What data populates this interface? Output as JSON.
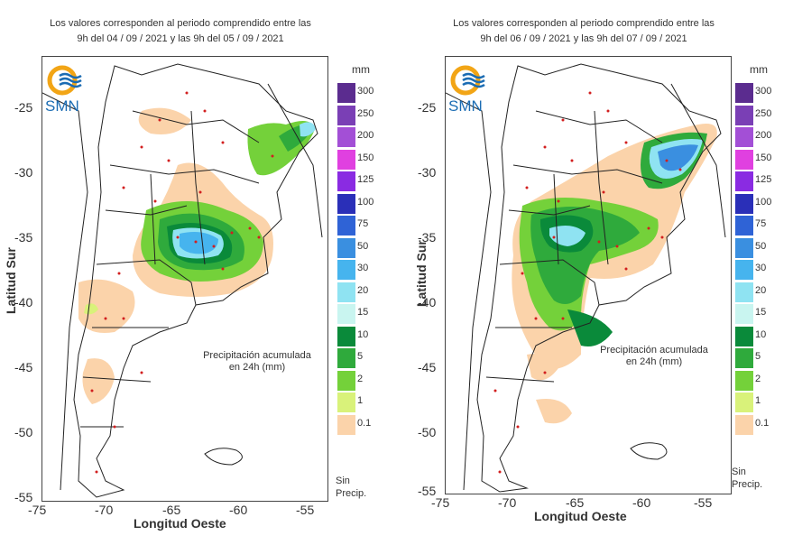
{
  "panels": [
    {
      "header_line1": "Los valores corresponden al periodo comprendido entre las",
      "header_line2": "9h del 04 / 09 / 2021  y las 9h del 05 / 09 / 2021",
      "note_line1": "Precipitación acumulada",
      "note_line2": "en 24h (mm)"
    },
    {
      "header_line1": "Los valores corresponden al periodo comprendido entre las",
      "header_line2": "9h del 06 / 09 / 2021  y las 9h del 07 / 09 / 2021",
      "note_line1": "Precipitación acumulada",
      "note_line2": "en 24h (mm)"
    }
  ],
  "logo_text": "SMN",
  "axes": {
    "ylabel": "Latitud Sur",
    "xlabel": "Longitud Oeste",
    "yticks": [
      "-25",
      "-30",
      "-35",
      "-40",
      "-45",
      "-50",
      "-55"
    ],
    "xticks": [
      "-75",
      "-70",
      "-65",
      "-60",
      "-55"
    ]
  },
  "legend": {
    "unit": "mm",
    "classes": [
      {
        "label": "300",
        "color": "#5b2c8f"
      },
      {
        "label": "250",
        "color": "#7a3fb5"
      },
      {
        "label": "200",
        "color": "#a34fd6"
      },
      {
        "label": "150",
        "color": "#e040e0"
      },
      {
        "label": "125",
        "color": "#8a2be2"
      },
      {
        "label": "100",
        "color": "#2a2fb8"
      },
      {
        "label": "75",
        "color": "#2f63d6"
      },
      {
        "label": "50",
        "color": "#3a8fe0"
      },
      {
        "label": "30",
        "color": "#46b4ee"
      },
      {
        "label": "20",
        "color": "#8fe3f2"
      },
      {
        "label": "15",
        "color": "#c9f5f0"
      },
      {
        "label": "10",
        "color": "#0a8a3a"
      },
      {
        "label": "5",
        "color": "#2faa3c"
      },
      {
        "label": "2",
        "color": "#74d13a"
      },
      {
        "label": "1",
        "color": "#d9f27a"
      },
      {
        "label": "0.1",
        "color": "#fbd3aa"
      }
    ],
    "sin_line1": "Sin",
    "sin_line2": "Precip."
  }
}
